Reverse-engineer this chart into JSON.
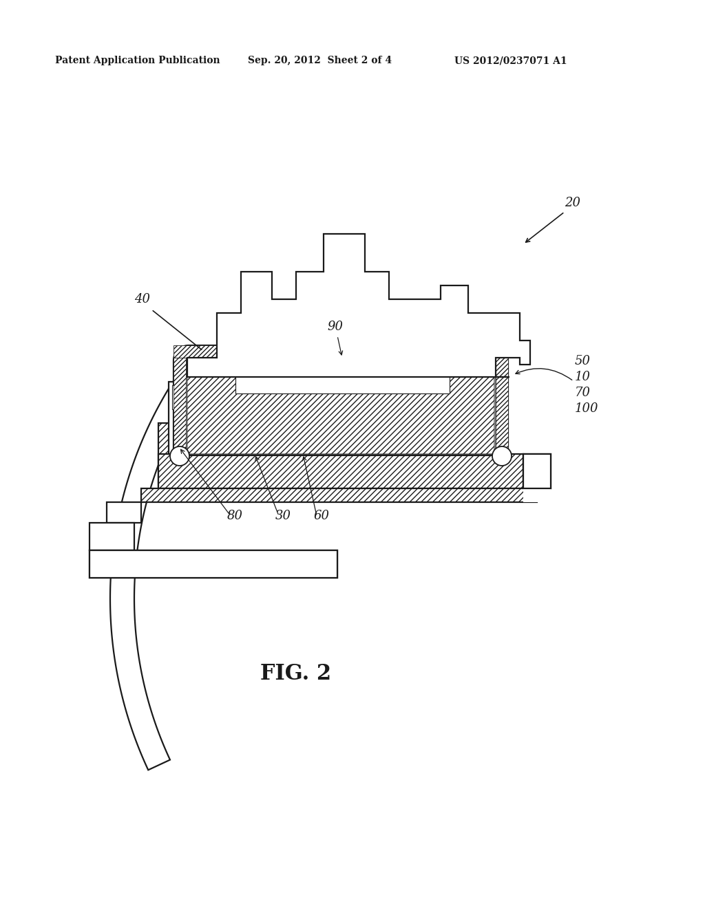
{
  "bg_color": "#ffffff",
  "lc": "#1a1a1a",
  "header_left": "Patent Application Publication",
  "header_mid": "Sep. 20, 2012  Sheet 2 of 4",
  "header_right": "US 2012/0237071 A1",
  "figure_label": "FIG. 2",
  "hatch_dense": "////",
  "hatch_walls": "/////"
}
